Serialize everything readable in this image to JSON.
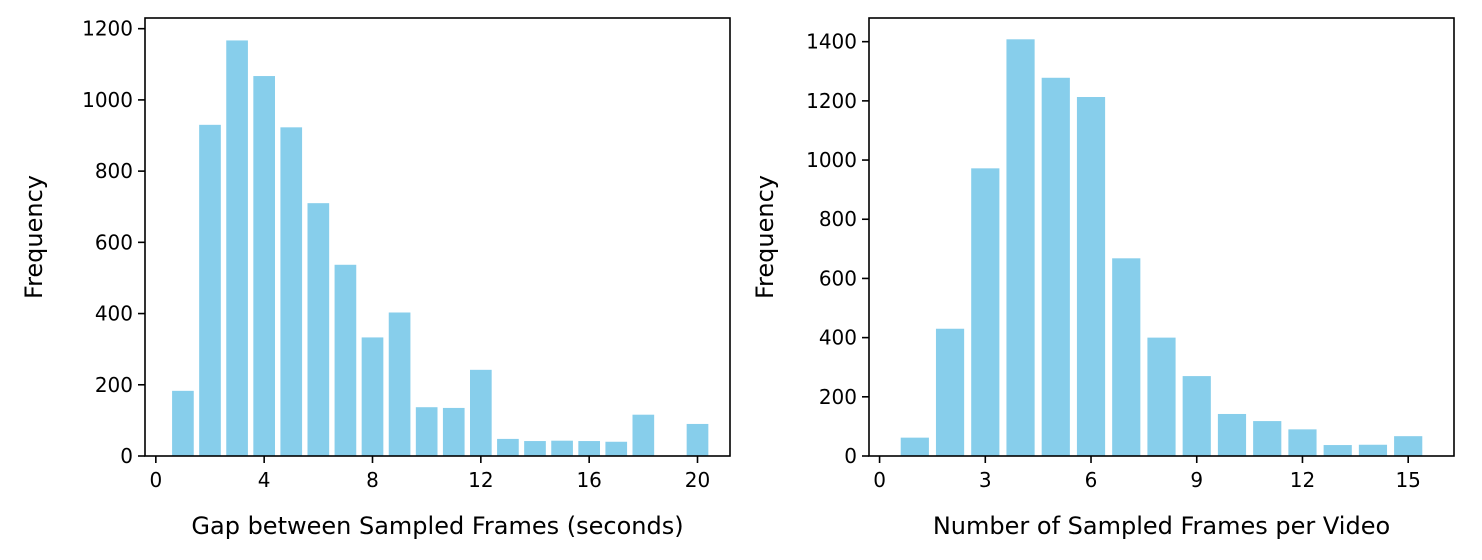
{
  "chart_data": [
    {
      "type": "bar",
      "title": "",
      "xlabel": "Gap between Sampled Frames (seconds)",
      "ylabel": "Frequency",
      "x": [
        1,
        2,
        3,
        4,
        5,
        6,
        7,
        8,
        9,
        10,
        11,
        12,
        13,
        14,
        15,
        16,
        17,
        18,
        20
      ],
      "values": [
        183,
        930,
        1167,
        1067,
        923,
        710,
        537,
        333,
        403,
        137,
        135,
        242,
        48,
        42,
        43,
        42,
        40,
        116,
        90
      ],
      "xlim": [
        -0.4,
        21.2
      ],
      "ylim": [
        0,
        1230
      ],
      "xticks": [
        0,
        4,
        8,
        12,
        16,
        20
      ],
      "xtick_labels": [
        "0",
        "4",
        "8",
        "12",
        "16",
        "20"
      ],
      "yticks": [
        0,
        200,
        400,
        600,
        800,
        1000,
        1200
      ],
      "ytick_labels": [
        "0",
        "200",
        "400",
        "600",
        "800",
        "1000",
        "1200"
      ],
      "bar_width": 0.8,
      "color": "#87CEEB",
      "grid": false,
      "legend": "none"
    },
    {
      "type": "bar",
      "title": "",
      "xlabel": "Number of Sampled Frames per Video",
      "ylabel": "Frequency",
      "x": [
        1,
        2,
        3,
        4,
        5,
        6,
        7,
        8,
        9,
        10,
        11,
        12,
        13,
        14,
        15
      ],
      "values": [
        62,
        430,
        972,
        1408,
        1278,
        1213,
        668,
        400,
        270,
        142,
        118,
        90,
        37,
        38,
        67
      ],
      "xlim": [
        -0.3,
        16.3
      ],
      "ylim": [
        0,
        1480
      ],
      "xticks": [
        0,
        3,
        6,
        9,
        12,
        15
      ],
      "xtick_labels": [
        "0",
        "3",
        "6",
        "9",
        "12",
        "15"
      ],
      "yticks": [
        0,
        200,
        400,
        600,
        800,
        1000,
        1200,
        1400
      ],
      "ytick_labels": [
        "0",
        "200",
        "400",
        "600",
        "800",
        "1000",
        "1200",
        "1400"
      ],
      "bar_width": 0.8,
      "color": "#87CEEB",
      "grid": false,
      "legend": "none"
    }
  ]
}
